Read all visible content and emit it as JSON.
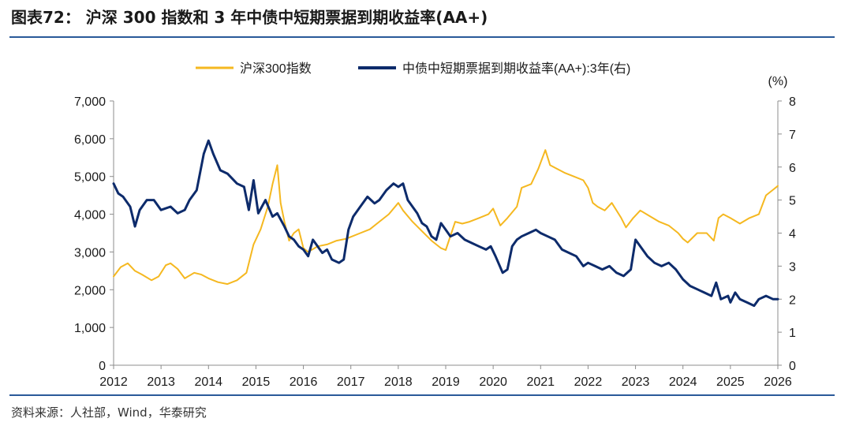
{
  "title": "图表72：  沪深 300 指数和 3 年中债中短期票据到期收益率(AA+)",
  "source": "资料来源：人社部，Wind，华泰研究",
  "chart_data": {
    "type": "line",
    "legend_position": "top",
    "x_ticks": [
      "2012",
      "2013",
      "2014",
      "2015",
      "2016",
      "2017",
      "2018",
      "2019",
      "2020",
      "2021",
      "2022",
      "2023",
      "2024",
      "2025",
      "2026"
    ],
    "x_range": [
      2012,
      2026
    ],
    "left_axis": {
      "ylim": [
        0,
        7000
      ],
      "ticks": [
        "0",
        "1,000",
        "2,000",
        "3,000",
        "4,000",
        "5,000",
        "6,000",
        "7,000"
      ]
    },
    "right_axis": {
      "unit": "(%)",
      "ylim": [
        0,
        8
      ],
      "ticks": [
        "0",
        "1",
        "2",
        "3",
        "4",
        "5",
        "6",
        "7",
        "8"
      ]
    },
    "series": [
      {
        "name": "沪深300指数",
        "axis": "left",
        "color": "#f5b820",
        "points": [
          [
            2012.0,
            2350
          ],
          [
            2012.15,
            2600
          ],
          [
            2012.3,
            2700
          ],
          [
            2012.45,
            2500
          ],
          [
            2012.6,
            2400
          ],
          [
            2012.8,
            2250
          ],
          [
            2012.95,
            2350
          ],
          [
            2013.1,
            2650
          ],
          [
            2013.2,
            2700
          ],
          [
            2013.35,
            2550
          ],
          [
            2013.5,
            2300
          ],
          [
            2013.7,
            2450
          ],
          [
            2013.85,
            2400
          ],
          [
            2014.0,
            2300
          ],
          [
            2014.2,
            2200
          ],
          [
            2014.4,
            2150
          ],
          [
            2014.6,
            2250
          ],
          [
            2014.8,
            2450
          ],
          [
            2014.95,
            3200
          ],
          [
            2015.1,
            3600
          ],
          [
            2015.25,
            4200
          ],
          [
            2015.35,
            4800
          ],
          [
            2015.45,
            5300
          ],
          [
            2015.52,
            4300
          ],
          [
            2015.6,
            3800
          ],
          [
            2015.7,
            3300
          ],
          [
            2015.8,
            3500
          ],
          [
            2015.9,
            3600
          ],
          [
            2016.0,
            3100
          ],
          [
            2016.1,
            3000
          ],
          [
            2016.3,
            3150
          ],
          [
            2016.5,
            3200
          ],
          [
            2016.7,
            3300
          ],
          [
            2016.9,
            3350
          ],
          [
            2017.0,
            3400
          ],
          [
            2017.2,
            3500
          ],
          [
            2017.4,
            3600
          ],
          [
            2017.6,
            3800
          ],
          [
            2017.8,
            4000
          ],
          [
            2018.0,
            4300
          ],
          [
            2018.1,
            4100
          ],
          [
            2018.3,
            3800
          ],
          [
            2018.5,
            3550
          ],
          [
            2018.7,
            3300
          ],
          [
            2018.9,
            3100
          ],
          [
            2019.0,
            3050
          ],
          [
            2019.2,
            3800
          ],
          [
            2019.35,
            3750
          ],
          [
            2019.5,
            3800
          ],
          [
            2019.7,
            3900
          ],
          [
            2019.9,
            4000
          ],
          [
            2020.0,
            4150
          ],
          [
            2020.15,
            3700
          ],
          [
            2020.3,
            3900
          ],
          [
            2020.5,
            4200
          ],
          [
            2020.6,
            4700
          ],
          [
            2020.8,
            4800
          ],
          [
            2020.95,
            5200
          ],
          [
            2021.1,
            5700
          ],
          [
            2021.2,
            5300
          ],
          [
            2021.35,
            5200
          ],
          [
            2021.5,
            5100
          ],
          [
            2021.7,
            5000
          ],
          [
            2021.9,
            4900
          ],
          [
            2022.0,
            4700
          ],
          [
            2022.1,
            4300
          ],
          [
            2022.2,
            4200
          ],
          [
            2022.35,
            4100
          ],
          [
            2022.5,
            4300
          ],
          [
            2022.7,
            3900
          ],
          [
            2022.8,
            3650
          ],
          [
            2022.95,
            3900
          ],
          [
            2023.1,
            4100
          ],
          [
            2023.3,
            3950
          ],
          [
            2023.5,
            3800
          ],
          [
            2023.7,
            3700
          ],
          [
            2023.9,
            3500
          ],
          [
            2024.0,
            3350
          ],
          [
            2024.1,
            3250
          ],
          [
            2024.3,
            3500
          ],
          [
            2024.5,
            3500
          ],
          [
            2024.65,
            3300
          ],
          [
            2024.75,
            3900
          ],
          [
            2024.85,
            4000
          ],
          [
            2025.0,
            3900
          ],
          [
            2025.2,
            3750
          ],
          [
            2025.4,
            3900
          ],
          [
            2025.6,
            4000
          ],
          [
            2025.75,
            4500
          ],
          [
            2025.9,
            4650
          ],
          [
            2026.0,
            4750
          ]
        ]
      },
      {
        "name": "中债中短期票据到期收益率(AA+):3年(右)",
        "axis": "right",
        "color": "#0d2b6b",
        "points": [
          [
            2012.0,
            5.5
          ],
          [
            2012.1,
            5.2
          ],
          [
            2012.2,
            5.1
          ],
          [
            2012.35,
            4.8
          ],
          [
            2012.45,
            4.2
          ],
          [
            2012.55,
            4.7
          ],
          [
            2012.7,
            5.0
          ],
          [
            2012.85,
            5.0
          ],
          [
            2013.0,
            4.7
          ],
          [
            2013.2,
            4.8
          ],
          [
            2013.35,
            4.6
          ],
          [
            2013.5,
            4.7
          ],
          [
            2013.6,
            5.0
          ],
          [
            2013.75,
            5.3
          ],
          [
            2013.9,
            6.4
          ],
          [
            2014.0,
            6.8
          ],
          [
            2014.1,
            6.4
          ],
          [
            2014.25,
            5.9
          ],
          [
            2014.4,
            5.8
          ],
          [
            2014.6,
            5.5
          ],
          [
            2014.75,
            5.4
          ],
          [
            2014.85,
            4.7
          ],
          [
            2014.95,
            5.6
          ],
          [
            2015.05,
            4.6
          ],
          [
            2015.2,
            5.0
          ],
          [
            2015.35,
            4.5
          ],
          [
            2015.45,
            4.6
          ],
          [
            2015.6,
            4.2
          ],
          [
            2015.7,
            3.9
          ],
          [
            2015.8,
            3.8
          ],
          [
            2015.9,
            3.6
          ],
          [
            2016.0,
            3.5
          ],
          [
            2016.1,
            3.3
          ],
          [
            2016.2,
            3.8
          ],
          [
            2016.3,
            3.6
          ],
          [
            2016.4,
            3.4
          ],
          [
            2016.5,
            3.5
          ],
          [
            2016.6,
            3.2
          ],
          [
            2016.75,
            3.1
          ],
          [
            2016.85,
            3.2
          ],
          [
            2016.95,
            4.1
          ],
          [
            2017.05,
            4.5
          ],
          [
            2017.2,
            4.8
          ],
          [
            2017.35,
            5.1
          ],
          [
            2017.5,
            4.9
          ],
          [
            2017.6,
            5.0
          ],
          [
            2017.75,
            5.3
          ],
          [
            2017.9,
            5.5
          ],
          [
            2018.0,
            5.4
          ],
          [
            2018.1,
            5.5
          ],
          [
            2018.2,
            5.0
          ],
          [
            2018.3,
            4.8
          ],
          [
            2018.4,
            4.6
          ],
          [
            2018.5,
            4.3
          ],
          [
            2018.6,
            4.2
          ],
          [
            2018.7,
            3.9
          ],
          [
            2018.8,
            3.8
          ],
          [
            2018.9,
            4.3
          ],
          [
            2019.0,
            4.1
          ],
          [
            2019.1,
            3.9
          ],
          [
            2019.25,
            4.0
          ],
          [
            2019.4,
            3.8
          ],
          [
            2019.55,
            3.7
          ],
          [
            2019.7,
            3.6
          ],
          [
            2019.85,
            3.5
          ],
          [
            2019.95,
            3.6
          ],
          [
            2020.05,
            3.3
          ],
          [
            2020.2,
            2.8
          ],
          [
            2020.3,
            2.9
          ],
          [
            2020.4,
            3.6
          ],
          [
            2020.5,
            3.8
          ],
          [
            2020.6,
            3.9
          ],
          [
            2020.75,
            4.0
          ],
          [
            2020.9,
            4.1
          ],
          [
            2021.0,
            4.0
          ],
          [
            2021.15,
            3.9
          ],
          [
            2021.3,
            3.8
          ],
          [
            2021.45,
            3.5
          ],
          [
            2021.6,
            3.4
          ],
          [
            2021.75,
            3.3
          ],
          [
            2021.9,
            3.0
          ],
          [
            2022.0,
            3.1
          ],
          [
            2022.15,
            3.0
          ],
          [
            2022.3,
            2.9
          ],
          [
            2022.45,
            3.0
          ],
          [
            2022.6,
            2.8
          ],
          [
            2022.75,
            2.7
          ],
          [
            2022.9,
            2.9
          ],
          [
            2023.0,
            3.8
          ],
          [
            2023.1,
            3.6
          ],
          [
            2023.25,
            3.3
          ],
          [
            2023.4,
            3.1
          ],
          [
            2023.55,
            3.0
          ],
          [
            2023.7,
            3.1
          ],
          [
            2023.85,
            2.9
          ],
          [
            2024.0,
            2.6
          ],
          [
            2024.15,
            2.4
          ],
          [
            2024.3,
            2.3
          ],
          [
            2024.45,
            2.2
          ],
          [
            2024.6,
            2.1
          ],
          [
            2024.7,
            2.5
          ],
          [
            2024.8,
            2.0
          ],
          [
            2024.95,
            2.1
          ],
          [
            2025.0,
            1.9
          ],
          [
            2025.1,
            2.2
          ],
          [
            2025.2,
            2.0
          ],
          [
            2025.35,
            1.9
          ],
          [
            2025.5,
            1.8
          ],
          [
            2025.6,
            2.0
          ],
          [
            2025.75,
            2.1
          ],
          [
            2025.9,
            2.0
          ],
          [
            2026.0,
            2.0
          ]
        ]
      }
    ]
  }
}
